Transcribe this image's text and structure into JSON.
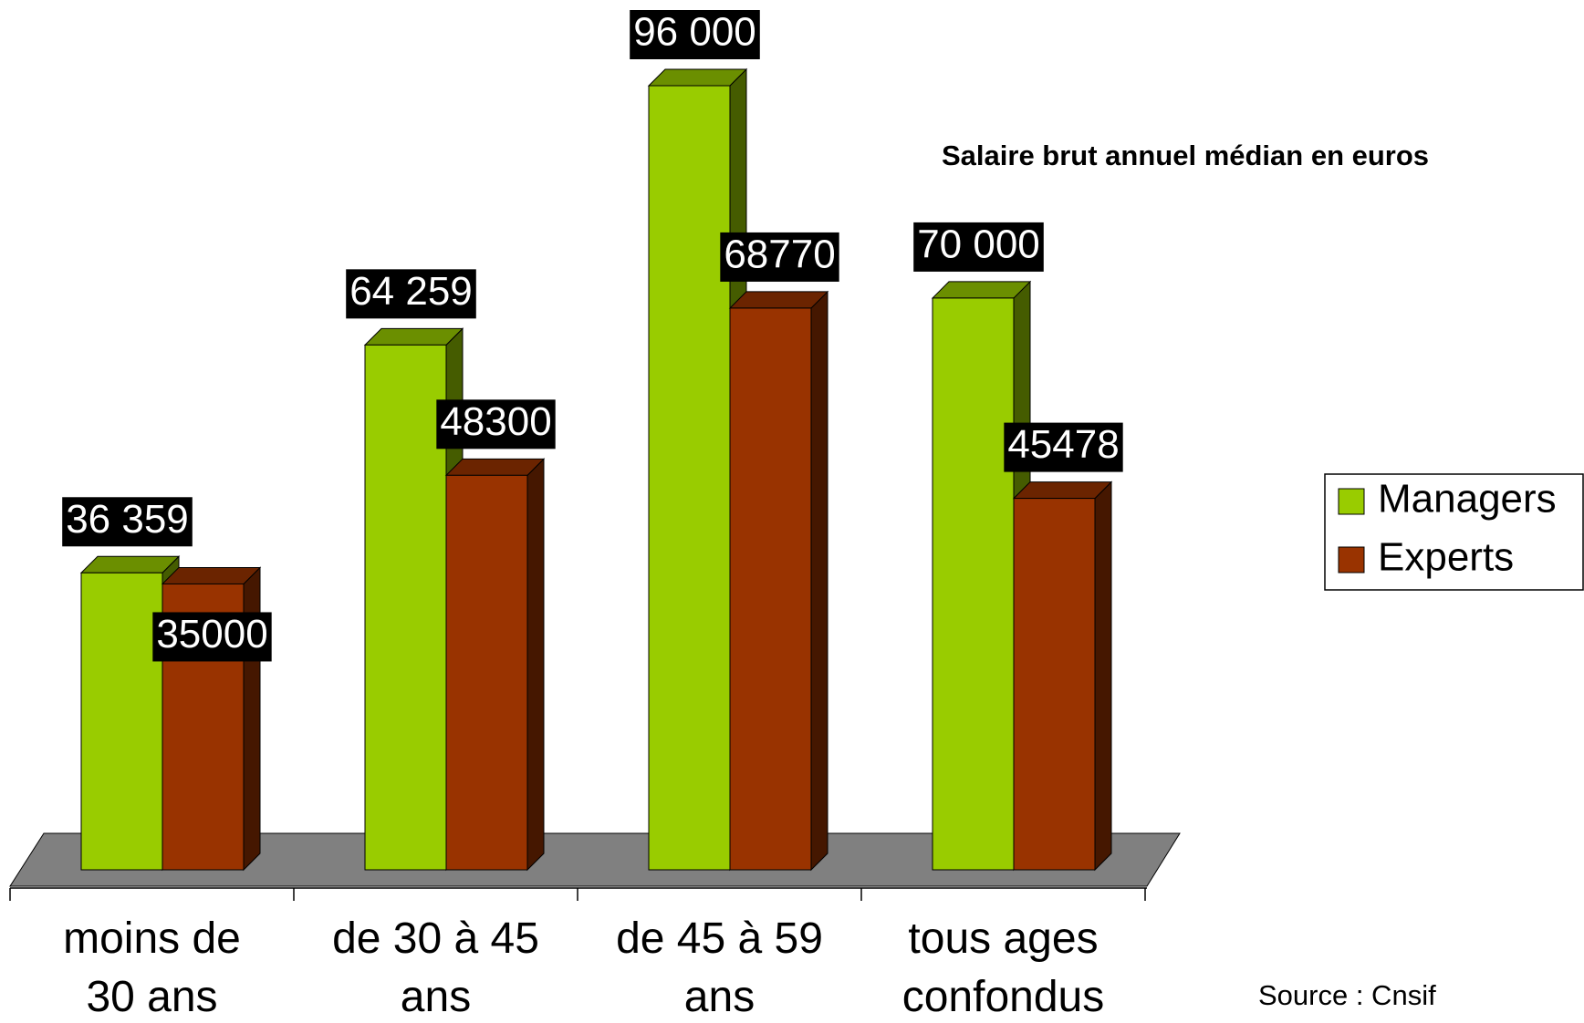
{
  "chart_data": {
    "type": "bar3d",
    "title": "Salaire brut annuel médian en euros",
    "source": "Source : Cnsif",
    "categories": [
      "moins de 30 ans",
      "de 30 à 45 ans",
      "de 45 à 59 ans",
      "tous ages confondus"
    ],
    "series": [
      {
        "name": "Managers",
        "color": "#99cc00",
        "values": [
          36359,
          64259,
          96000,
          70000
        ],
        "value_labels": [
          "36 359",
          "64 259",
          "96 000",
          "70 000"
        ]
      },
      {
        "name": "Experts",
        "color": "#993300",
        "values": [
          35000,
          48300,
          68770,
          45478
        ]
      }
    ],
    "legend": "right"
  }
}
